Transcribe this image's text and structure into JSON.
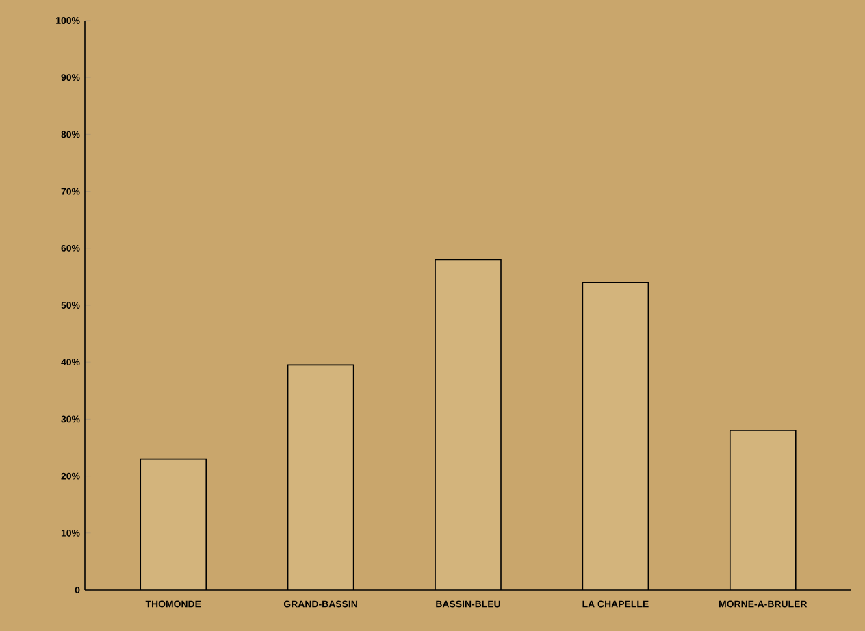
{
  "chart_data": {
    "type": "bar",
    "categories": [
      "THOMONDE",
      "GRAND-BASSIN",
      "BASSIN-BLEU",
      "LA CHAPELLE",
      "MORNE-A-BRULER"
    ],
    "values": [
      23,
      39.5,
      58,
      54,
      28
    ],
    "color": "#d3b47c",
    "ylim": [
      0,
      100
    ],
    "yticks": [
      0,
      {
        "value": 10,
        "label": "10%"
      },
      {
        "value": 20,
        "label": "20%"
      },
      {
        "value": 30,
        "label": "30%"
      },
      {
        "value": 40,
        "label": "40%"
      },
      {
        "value": 50,
        "label": "50%"
      },
      {
        "value": 60,
        "label": "60%"
      },
      {
        "value": 70,
        "label": "70%"
      },
      {
        "value": 80,
        "label": "80%"
      },
      {
        "value": 90,
        "label": "90%"
      },
      {
        "value": 100,
        "label": "100%"
      }
    ],
    "grid": false
  }
}
